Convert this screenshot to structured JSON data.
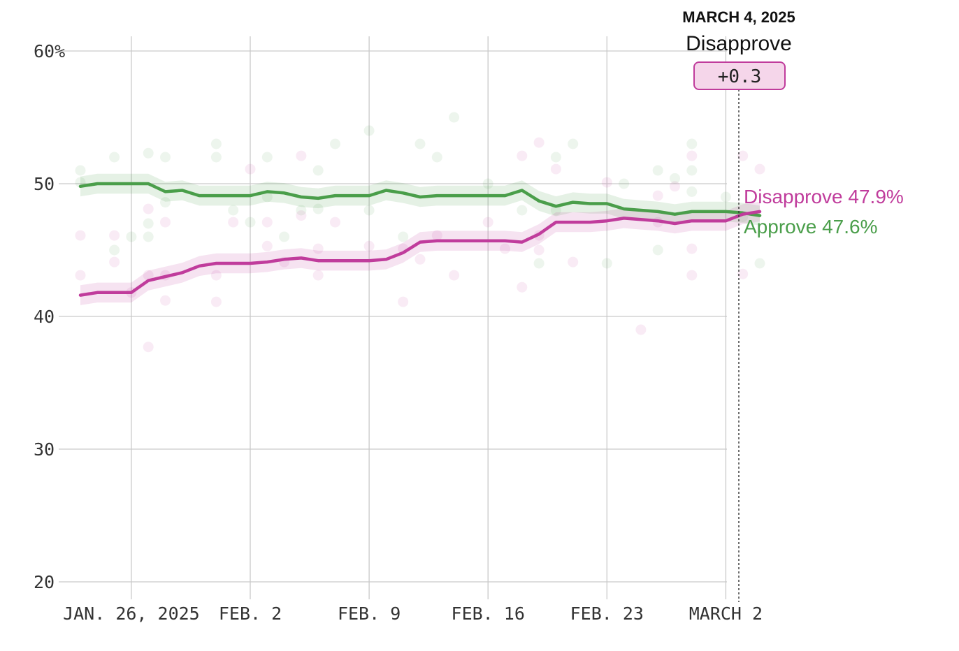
{
  "chart_data": {
    "type": "line",
    "x_ticks": [
      "JAN. 26, 2025",
      "FEB. 2",
      "FEB. 9",
      "FEB. 16",
      "FEB. 23",
      "MARCH 2"
    ],
    "y_ticks": [
      "60%",
      "50",
      "40",
      "30",
      "20"
    ],
    "ylim": [
      20,
      60
    ],
    "xlim": [
      "2025-01-23",
      "2025-03-04"
    ],
    "grid": true,
    "colors": {
      "approve": "#4a9e4a",
      "disapprove": "#c03c9c"
    },
    "series": [
      {
        "key": "approve",
        "values": [
          [
            "2025-01-23",
            49.8
          ],
          [
            "2025-01-24",
            50.0
          ],
          [
            "2025-01-25",
            50.0
          ],
          [
            "2025-01-26",
            50.0
          ],
          [
            "2025-01-27",
            50.0
          ],
          [
            "2025-01-28",
            49.4
          ],
          [
            "2025-01-29",
            49.5
          ],
          [
            "2025-01-30",
            49.1
          ],
          [
            "2025-01-31",
            49.1
          ],
          [
            "2025-02-01",
            49.1
          ],
          [
            "2025-02-02",
            49.1
          ],
          [
            "2025-02-03",
            49.4
          ],
          [
            "2025-02-04",
            49.3
          ],
          [
            "2025-02-05",
            49.0
          ],
          [
            "2025-02-06",
            48.9
          ],
          [
            "2025-02-07",
            49.1
          ],
          [
            "2025-02-08",
            49.1
          ],
          [
            "2025-02-09",
            49.1
          ],
          [
            "2025-02-10",
            49.5
          ],
          [
            "2025-02-11",
            49.3
          ],
          [
            "2025-02-12",
            49.0
          ],
          [
            "2025-02-13",
            49.1
          ],
          [
            "2025-02-14",
            49.1
          ],
          [
            "2025-02-15",
            49.1
          ],
          [
            "2025-02-16",
            49.1
          ],
          [
            "2025-02-17",
            49.1
          ],
          [
            "2025-02-18",
            49.5
          ],
          [
            "2025-02-19",
            48.7
          ],
          [
            "2025-02-20",
            48.3
          ],
          [
            "2025-02-21",
            48.6
          ],
          [
            "2025-02-22",
            48.5
          ],
          [
            "2025-02-23",
            48.5
          ],
          [
            "2025-02-24",
            48.1
          ],
          [
            "2025-02-25",
            48.0
          ],
          [
            "2025-02-26",
            47.9
          ],
          [
            "2025-02-27",
            47.7
          ],
          [
            "2025-02-28",
            47.9
          ],
          [
            "2025-03-01",
            47.9
          ],
          [
            "2025-03-02",
            47.9
          ],
          [
            "2025-03-03",
            47.8
          ],
          [
            "2025-03-04",
            47.6
          ]
        ]
      },
      {
        "key": "disapprove",
        "values": [
          [
            "2025-01-23",
            41.6
          ],
          [
            "2025-01-24",
            41.8
          ],
          [
            "2025-01-25",
            41.8
          ],
          [
            "2025-01-26",
            41.8
          ],
          [
            "2025-01-27",
            42.7
          ],
          [
            "2025-01-28",
            43.0
          ],
          [
            "2025-01-29",
            43.3
          ],
          [
            "2025-01-30",
            43.8
          ],
          [
            "2025-01-31",
            44.0
          ],
          [
            "2025-02-01",
            44.0
          ],
          [
            "2025-02-02",
            44.0
          ],
          [
            "2025-02-03",
            44.1
          ],
          [
            "2025-02-04",
            44.3
          ],
          [
            "2025-02-05",
            44.4
          ],
          [
            "2025-02-06",
            44.2
          ],
          [
            "2025-02-07",
            44.2
          ],
          [
            "2025-02-08",
            44.2
          ],
          [
            "2025-02-09",
            44.2
          ],
          [
            "2025-02-10",
            44.3
          ],
          [
            "2025-02-11",
            44.8
          ],
          [
            "2025-02-12",
            45.6
          ],
          [
            "2025-02-13",
            45.7
          ],
          [
            "2025-02-14",
            45.7
          ],
          [
            "2025-02-15",
            45.7
          ],
          [
            "2025-02-16",
            45.7
          ],
          [
            "2025-02-17",
            45.7
          ],
          [
            "2025-02-18",
            45.6
          ],
          [
            "2025-02-19",
            46.2
          ],
          [
            "2025-02-20",
            47.1
          ],
          [
            "2025-02-21",
            47.1
          ],
          [
            "2025-02-22",
            47.1
          ],
          [
            "2025-02-23",
            47.2
          ],
          [
            "2025-02-24",
            47.4
          ],
          [
            "2025-02-25",
            47.3
          ],
          [
            "2025-02-26",
            47.2
          ],
          [
            "2025-02-27",
            47.0
          ],
          [
            "2025-02-28",
            47.2
          ],
          [
            "2025-03-01",
            47.2
          ],
          [
            "2025-03-02",
            47.2
          ],
          [
            "2025-03-03",
            47.7
          ],
          [
            "2025-03-04",
            47.9
          ]
        ]
      }
    ],
    "poll_points": {
      "approve": [
        [
          "2025-01-23",
          51.0
        ],
        [
          "2025-01-23",
          50.1
        ],
        [
          "2025-01-25",
          52.0
        ],
        [
          "2025-01-25",
          45.0
        ],
        [
          "2025-01-26",
          46.0
        ],
        [
          "2025-01-27",
          52.3
        ],
        [
          "2025-01-27",
          47.0
        ],
        [
          "2025-01-27",
          46.0
        ],
        [
          "2025-01-28",
          52.0
        ],
        [
          "2025-01-28",
          48.6
        ],
        [
          "2025-01-31",
          53.0
        ],
        [
          "2025-01-31",
          52.0
        ],
        [
          "2025-02-01",
          48.0
        ],
        [
          "2025-02-02",
          47.1
        ],
        [
          "2025-02-03",
          52.0
        ],
        [
          "2025-02-03",
          49.0
        ],
        [
          "2025-02-04",
          46.0
        ],
        [
          "2025-02-05",
          48.0
        ],
        [
          "2025-02-06",
          51.0
        ],
        [
          "2025-02-06",
          48.1
        ],
        [
          "2025-02-07",
          53.0
        ],
        [
          "2025-02-09",
          54.0
        ],
        [
          "2025-02-09",
          48.0
        ],
        [
          "2025-02-11",
          46.0
        ],
        [
          "2025-02-12",
          53.0
        ],
        [
          "2025-02-13",
          52.0
        ],
        [
          "2025-02-14",
          55.0
        ],
        [
          "2025-02-16",
          50.0
        ],
        [
          "2025-02-18",
          48.0
        ],
        [
          "2025-02-19",
          44.0
        ],
        [
          "2025-02-20",
          52.0
        ],
        [
          "2025-02-20",
          48.0
        ],
        [
          "2025-02-21",
          53.0
        ],
        [
          "2025-02-23",
          44.0
        ],
        [
          "2025-02-24",
          50.0
        ],
        [
          "2025-02-26",
          51.0
        ],
        [
          "2025-02-26",
          45.0
        ],
        [
          "2025-02-27",
          50.4
        ],
        [
          "2025-02-28",
          53.0
        ],
        [
          "2025-02-28",
          51.0
        ],
        [
          "2025-02-28",
          49.4
        ],
        [
          "2025-03-02",
          49.0
        ],
        [
          "2025-03-03",
          47.5
        ],
        [
          "2025-03-04",
          44.0
        ]
      ],
      "disapprove": [
        [
          "2025-01-23",
          46.1
        ],
        [
          "2025-01-23",
          43.1
        ],
        [
          "2025-01-25",
          46.1
        ],
        [
          "2025-01-25",
          44.1
        ],
        [
          "2025-01-26",
          41.8
        ],
        [
          "2025-01-27",
          48.1
        ],
        [
          "2025-01-27",
          43.1
        ],
        [
          "2025-01-27",
          37.7
        ],
        [
          "2025-01-28",
          47.1
        ],
        [
          "2025-01-28",
          43.1
        ],
        [
          "2025-01-28",
          41.2
        ],
        [
          "2025-01-31",
          43.1
        ],
        [
          "2025-01-31",
          41.1
        ],
        [
          "2025-02-01",
          47.1
        ],
        [
          "2025-02-02",
          51.1
        ],
        [
          "2025-02-03",
          47.1
        ],
        [
          "2025-02-03",
          45.3
        ],
        [
          "2025-02-04",
          44.1
        ],
        [
          "2025-02-05",
          52.1
        ],
        [
          "2025-02-05",
          47.6
        ],
        [
          "2025-02-06",
          45.1
        ],
        [
          "2025-02-06",
          43.1
        ],
        [
          "2025-02-07",
          47.1
        ],
        [
          "2025-02-09",
          45.3
        ],
        [
          "2025-02-11",
          45.1
        ],
        [
          "2025-02-11",
          41.1
        ],
        [
          "2025-02-12",
          44.3
        ],
        [
          "2025-02-13",
          46.1
        ],
        [
          "2025-02-14",
          43.1
        ],
        [
          "2025-02-16",
          47.1
        ],
        [
          "2025-02-17",
          45.1
        ],
        [
          "2025-02-18",
          52.1
        ],
        [
          "2025-02-18",
          42.2
        ],
        [
          "2025-02-19",
          53.1
        ],
        [
          "2025-02-19",
          46.1
        ],
        [
          "2025-02-19",
          45.0
        ],
        [
          "2025-02-20",
          51.1
        ],
        [
          "2025-02-21",
          44.1
        ],
        [
          "2025-02-23",
          50.1
        ],
        [
          "2025-02-25",
          39.0
        ],
        [
          "2025-02-26",
          49.1
        ],
        [
          "2025-02-26",
          47.1
        ],
        [
          "2025-02-27",
          49.8
        ],
        [
          "2025-02-28",
          52.1
        ],
        [
          "2025-02-28",
          45.1
        ],
        [
          "2025-02-28",
          43.1
        ],
        [
          "2025-03-03",
          52.1
        ],
        [
          "2025-03-03",
          43.2
        ],
        [
          "2025-03-04",
          51.1
        ]
      ]
    },
    "end_labels": [
      {
        "key": "disapprove",
        "text": "Disapprove 47.9%"
      },
      {
        "key": "approve",
        "text": "Approve 47.6%"
      }
    ],
    "hover": {
      "date": "MARCH 4, 2025",
      "label": "Disapprove",
      "margin": "+0.3"
    }
  }
}
